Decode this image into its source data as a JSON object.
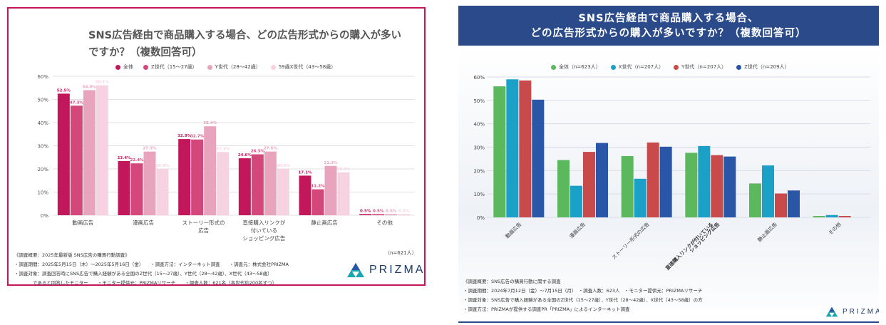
{
  "left": {
    "title": "SNS広告経由で商品購入する場合、どの広告形式からの購入が多いですか？（複数回答可）",
    "n_label": "（n=621人）",
    "notes": [
      "《調査概要：2025年最新版 SNS広告の購買行動調査》",
      "・調査期間：2025年5月15日（木）〜2025年5月16日（金）　　・調査方法：インターネット調査　　・調査元：株式会社PRIZMA",
      "・調査対象：調査回答時にSNS広告で購入経験がある全国のZ世代（15〜27歳）、Y世代（28〜42歳）、X世代（43〜58歳）",
      "　　　　であると回答したモニター　　・モニター提供元：PRIZMAリサーチ　　・調査人数：621名（各世代約200名ずつ）"
    ],
    "logo_text": "PRIZMA"
  },
  "right": {
    "title_line1": "SNS広告経由で商品購入する場合、",
    "title_line2": "どの広告形式からの購入が多いですか？（複数回答可）",
    "notes": [
      "《調査概要：SNS広告の購買行動に関する調査",
      "・調査期間：2024年7月12日（金）〜7月15日（月）　・調査人数：623人　・モニター提供元：PRIZMAリサーチ",
      "・調査対象：SNS広告で購入経験がある全国のZ世代（15〜27歳）、Y世代（28〜42歳）、X世代（43〜58歳）の方",
      "・調査方法：PRIZMAが提供する調査PR「PRIZMA」によるインターネット調査"
    ],
    "logo_text": "PRIZMA"
  },
  "chart_data": [
    {
      "type": "bar",
      "title": "SNS広告経由で商品購入する場合、どの広告形式からの購入が多いですか？（複数回答可）",
      "categories": [
        "動画広告",
        "漫画広告",
        "ストーリー形式の\n広告",
        "直接購入リンクが\n付いている\nショッピング広告",
        "静止画広告",
        "その他"
      ],
      "series": [
        {
          "name": "全体",
          "color": "#c2185b",
          "values": [
            52.5,
            23.4,
            32.9,
            24.6,
            17.1,
            0.5
          ],
          "labels": [
            "52.5%",
            "23.4%",
            "32.9%",
            "24.6%",
            "17.1%",
            "0.5%"
          ]
        },
        {
          "name": "Z世代（15〜27歳）",
          "color": "#d4477a",
          "values": [
            47.3,
            22.4,
            32.7,
            26.3,
            11.2,
            0.5
          ],
          "labels": [
            "47.3%",
            "22.4%",
            "32.7%",
            "26.3%",
            "11.2%",
            "0.5%"
          ]
        },
        {
          "name": "Y世代（28〜42歳）",
          "color": "#e8a3bd",
          "values": [
            54.0,
            27.5,
            38.4,
            27.5,
            21.3,
            0.5
          ],
          "labels": [
            "54.0%",
            "27.5%",
            "38.4%",
            "27.5%",
            "21.3%",
            "0.5%"
          ]
        },
        {
          "name": "59歳X世代（43〜58歳）",
          "color": "#f7d3e1",
          "values": [
            56.1,
            20.0,
            27.3,
            20.0,
            18.5,
            0.5
          ],
          "labels": [
            "56.1%",
            "20.0%",
            "27.3%",
            "20.0%",
            "18.5%",
            "0.5%"
          ]
        }
      ],
      "yticks": [
        "0%",
        "10%",
        "20%",
        "30%",
        "40%",
        "50%",
        "60%"
      ],
      "ylim": [
        0,
        60
      ],
      "grid": true,
      "legend": "top"
    },
    {
      "type": "bar",
      "title": "SNS広告経由で商品購入する場合、どの広告形式からの購入が多いですか？（複数回答可）",
      "categories": [
        "動画広告",
        "漫画広告",
        "ストーリー形式の広告",
        "直接購入リンクが付いている\nショッピング広告",
        "静止画広告",
        "その他"
      ],
      "series": [
        {
          "name": "全体（n=623人）",
          "color": "#5cb85c",
          "values": [
            56.0,
            24.5,
            26.2,
            27.6,
            14.5,
            0.6
          ]
        },
        {
          "name": "X世代（n=207人）",
          "color": "#1ba0c8",
          "values": [
            59.0,
            13.5,
            16.5,
            30.5,
            22.2,
            1.0
          ]
        },
        {
          "name": "Y世代（n=207人）",
          "color": "#c94a4a",
          "values": [
            58.5,
            28.0,
            32.0,
            26.6,
            10.2,
            0.6
          ]
        },
        {
          "name": "Z世代（n=209人）",
          "color": "#2a56a8",
          "values": [
            50.3,
            31.8,
            30.2,
            26.0,
            11.5,
            0.0
          ]
        }
      ],
      "yticks": [
        "0%",
        "10%",
        "20%",
        "30%",
        "40%",
        "50%",
        "60%"
      ],
      "ylim": [
        0,
        60
      ],
      "grid": true,
      "legend": "top"
    }
  ]
}
